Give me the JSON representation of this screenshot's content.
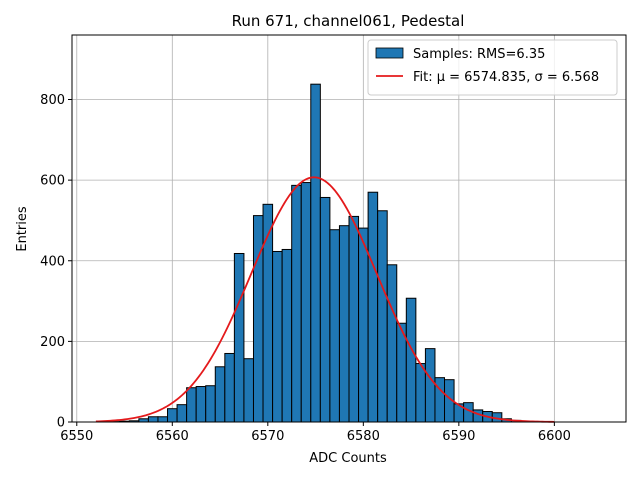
{
  "chart_data": {
    "type": "bar",
    "title": "Run 671, channel061, Pedestal",
    "xlabel": "ADC Counts",
    "ylabel": "Entries",
    "xlim": [
      6549.5,
      6607.5
    ],
    "ylim": [
      0,
      960
    ],
    "xticks": [
      6550,
      6560,
      6570,
      6580,
      6590,
      6600
    ],
    "yticks": [
      0,
      200,
      400,
      600,
      800
    ],
    "grid": true,
    "legend_position": "top-right",
    "bin_width": 1,
    "bins": [
      6553,
      6554,
      6555,
      6556,
      6557,
      6558,
      6559,
      6560,
      6561,
      6562,
      6563,
      6564,
      6565,
      6566,
      6567,
      6568,
      6569,
      6570,
      6571,
      6572,
      6573,
      6574,
      6575,
      6576,
      6577,
      6578,
      6579,
      6580,
      6581,
      6582,
      6583,
      6584,
      6585,
      6586,
      6587,
      6588,
      6589,
      6590,
      6591,
      6592,
      6593,
      6594,
      6595,
      6596,
      6597
    ],
    "values": [
      1,
      1,
      2,
      3,
      8,
      13,
      13,
      33,
      43,
      85,
      88,
      90,
      137,
      170,
      418,
      157,
      512,
      540,
      423,
      428,
      587,
      594,
      838,
      557,
      477,
      487,
      510,
      481,
      570,
      524,
      390,
      245,
      307,
      145,
      182,
      110,
      105,
      45,
      48,
      30,
      26,
      23,
      8,
      4,
      2
    ],
    "series": [
      {
        "name": "Samples: RMS=6.35",
        "kind": "histogram",
        "color": "#1f77b4",
        "edgecolor": "#000000"
      },
      {
        "name": "Fit: μ = 6574.835, σ = 6.568",
        "kind": "gaussian-fit",
        "color": "#e41a1c",
        "mu": 6574.835,
        "sigma": 6.568,
        "amplitude": 607,
        "x_range": [
          6552,
          6600
        ]
      }
    ]
  }
}
